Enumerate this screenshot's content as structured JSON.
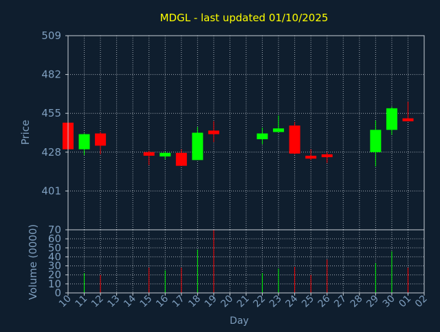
{
  "colors": {
    "background": "#0f1e2e",
    "axis": "#c8d0d8",
    "grid": "#c8d0d8",
    "title": "#ffff00",
    "label": "#7f9fbf",
    "up": "#00ff00",
    "down": "#ff0000"
  },
  "chart_data": {
    "type": "candlestick",
    "title": "MDGL - last updated 01/10/2025",
    "xlabel": "Day",
    "price_axis": {
      "ylabel": "Price",
      "ylim": [
        374,
        509
      ],
      "ticks": [
        509,
        482,
        455,
        428,
        401
      ]
    },
    "volume_axis": {
      "ylabel": "Volume (0000)",
      "ylim": [
        0,
        70
      ],
      "ticks": [
        70,
        60,
        50,
        40,
        30,
        20,
        10,
        0
      ]
    },
    "x_ticks": [
      "10",
      "11",
      "12",
      "13",
      "14",
      "15",
      "16",
      "17",
      "18",
      "19",
      "20",
      "21",
      "22",
      "23",
      "24",
      "25",
      "26",
      "27",
      "28",
      "29",
      "30",
      "01",
      "02"
    ],
    "grid": true,
    "candles": [
      {
        "day": "10",
        "open": 448.5,
        "high": 449.0,
        "low": 430.0,
        "close": 430.0,
        "volume": 0
      },
      {
        "day": "11",
        "open": 430.0,
        "high": 441.0,
        "low": 426.0,
        "close": 440.5,
        "volume": 22
      },
      {
        "day": "12",
        "open": 441.0,
        "high": 442.0,
        "low": 426.5,
        "close": 432.5,
        "volume": 20
      },
      {
        "day": "15",
        "open": 428.0,
        "high": 429.0,
        "low": 419.0,
        "close": 425.5,
        "volume": 28
      },
      {
        "day": "16",
        "open": 425.0,
        "high": 428.5,
        "low": 423.0,
        "close": 427.5,
        "volume": 25
      },
      {
        "day": "17",
        "open": 427.5,
        "high": 430.0,
        "low": 418.5,
        "close": 418.5,
        "volume": 28
      },
      {
        "day": "18",
        "open": 422.5,
        "high": 445.5,
        "low": 422.5,
        "close": 441.5,
        "volume": 48
      },
      {
        "day": "19",
        "open": 443.0,
        "high": 449.5,
        "low": 435.0,
        "close": 440.5,
        "volume": 70
      },
      {
        "day": "22",
        "open": 437.0,
        "high": 445.0,
        "low": 433.5,
        "close": 441.0,
        "volume": 22
      },
      {
        "day": "23",
        "open": 442.0,
        "high": 453.5,
        "low": 442.0,
        "close": 444.5,
        "volume": 27
      },
      {
        "day": "24",
        "open": 446.5,
        "high": 449.0,
        "low": 426.5,
        "close": 427.0,
        "volume": 29
      },
      {
        "day": "25",
        "open": 425.5,
        "high": 430.0,
        "low": 422.5,
        "close": 423.5,
        "volume": 20
      },
      {
        "day": "26",
        "open": 426.5,
        "high": 428.0,
        "low": 420.5,
        "close": 424.5,
        "volume": 37
      },
      {
        "day": "29",
        "open": 428.0,
        "high": 450.0,
        "low": 418.0,
        "close": 443.5,
        "volume": 33
      },
      {
        "day": "30",
        "open": 443.5,
        "high": 459.5,
        "low": 440.0,
        "close": 458.5,
        "volume": 46
      },
      {
        "day": "01",
        "open": 451.5,
        "high": 463.0,
        "low": 449.5,
        "close": 449.5,
        "volume": 28
      }
    ]
  }
}
